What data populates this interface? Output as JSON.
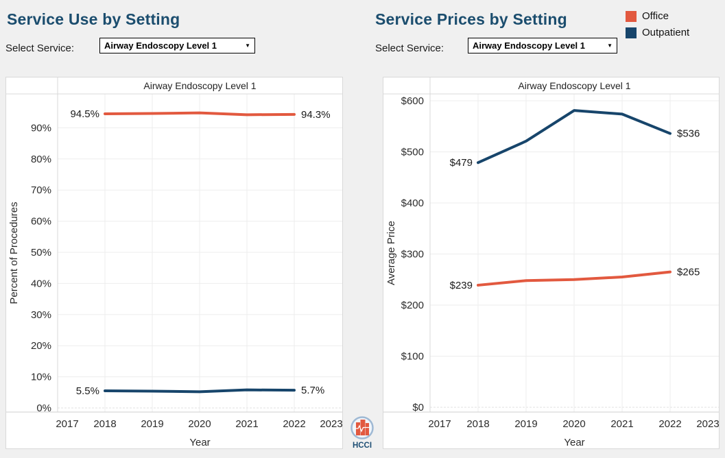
{
  "left_section": {
    "title": "Service Use by Setting",
    "select_label": "Select Service:",
    "select_value": "Airway Endoscopy Level 1"
  },
  "right_section": {
    "title": "Service Prices by Setting",
    "select_label": "Select Service:",
    "select_value": "Airway Endoscopy Level 1"
  },
  "legend": {
    "items": [
      {
        "label": "Office",
        "color": "#e2593f"
      },
      {
        "label": "Outpatient",
        "color": "#17456b"
      }
    ]
  },
  "logo": {
    "text": "HCCI"
  },
  "colors": {
    "office": "#e2593f",
    "outpatient": "#17456b",
    "heading": "#1b4d6e",
    "background": "#f0f0f0",
    "panel_border": "#d9d9d9",
    "gridline": "#ededed"
  },
  "chart_data": [
    {
      "type": "line",
      "title": "Airway Endoscopy Level 1",
      "xlabel": "Year",
      "ylabel": "Percent of Procedures",
      "x": [
        2018,
        2019,
        2020,
        2021,
        2022
      ],
      "xticks": [
        2017,
        2018,
        2019,
        2020,
        2021,
        2022,
        2023
      ],
      "xlim": [
        2017,
        2023
      ],
      "ylim": [
        0,
        100
      ],
      "grid": true,
      "ytick_values": [
        0,
        10,
        20,
        30,
        40,
        50,
        60,
        70,
        80,
        90
      ],
      "ytick_labels": [
        "0%",
        "10%",
        "20%",
        "30%",
        "40%",
        "50%",
        "60%",
        "70%",
        "80%",
        "90%"
      ],
      "series": [
        {
          "name": "Office",
          "color": "#e2593f",
          "values": [
            94.5,
            94.6,
            94.8,
            94.2,
            94.3
          ],
          "first_label": "94.5%",
          "last_label": "94.3%"
        },
        {
          "name": "Outpatient",
          "color": "#17456b",
          "values": [
            5.5,
            5.4,
            5.2,
            5.8,
            5.7
          ],
          "first_label": "5.5%",
          "last_label": "5.7%"
        }
      ]
    },
    {
      "type": "line",
      "title": "Airway Endoscopy Level 1",
      "xlabel": "Year",
      "ylabel": "Average Price",
      "x": [
        2018,
        2019,
        2020,
        2021,
        2022
      ],
      "xticks": [
        2017,
        2018,
        2019,
        2020,
        2021,
        2022,
        2023
      ],
      "xlim": [
        2017,
        2023
      ],
      "ylim": [
        0,
        600
      ],
      "grid": true,
      "ytick_values": [
        0,
        100,
        200,
        300,
        400,
        500,
        600
      ],
      "ytick_labels": [
        "$0",
        "$100",
        "$200",
        "$300",
        "$400",
        "$500",
        "$600"
      ],
      "series": [
        {
          "name": "Outpatient",
          "color": "#17456b",
          "values": [
            479,
            521,
            581,
            574,
            536
          ],
          "first_label": "$479",
          "last_label": "$536"
        },
        {
          "name": "Office",
          "color": "#e2593f",
          "values": [
            239,
            248,
            250,
            255,
            265
          ],
          "first_label": "$239",
          "last_label": "$265"
        }
      ]
    }
  ]
}
